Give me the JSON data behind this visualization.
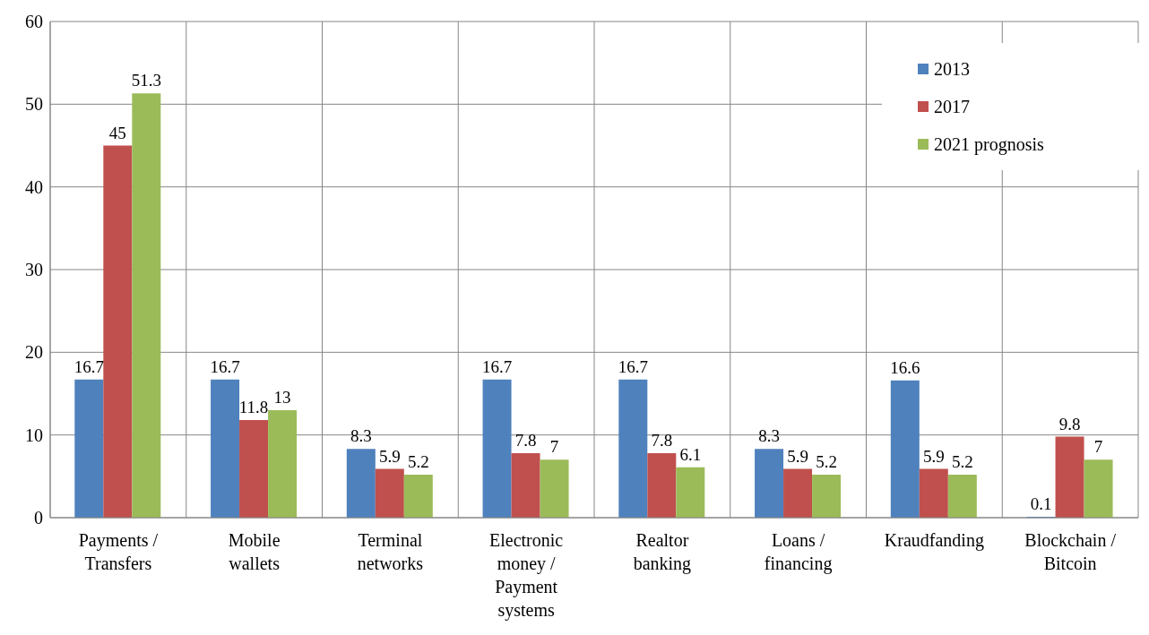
{
  "chart_data": {
    "type": "bar",
    "categories": [
      "Payments / Transfers",
      "Mobile wallets",
      "Terminal networks",
      "Electronic money / Payment systems",
      "Realtor banking",
      "Loans / financing",
      "Kraudfanding",
      "Blockchain / Bitcoin"
    ],
    "series": [
      {
        "name": "2013",
        "color": "#4f81bd",
        "values": [
          16.7,
          16.7,
          8.3,
          16.7,
          16.7,
          8.3,
          16.6,
          0.1
        ]
      },
      {
        "name": "2017",
        "color": "#c0504d",
        "values": [
          45,
          11.8,
          5.9,
          7.8,
          7.8,
          5.9,
          5.9,
          9.8
        ]
      },
      {
        "name": "2021 prognosis",
        "color": "#9bbb59",
        "values": [
          51.3,
          13,
          5.2,
          7,
          6.1,
          5.2,
          5.2,
          7
        ]
      }
    ],
    "ylim": [
      0,
      60
    ],
    "yticks": [
      0,
      10,
      20,
      30,
      40,
      50,
      60
    ],
    "grid": true,
    "legend": "top right",
    "data_labels": true
  }
}
